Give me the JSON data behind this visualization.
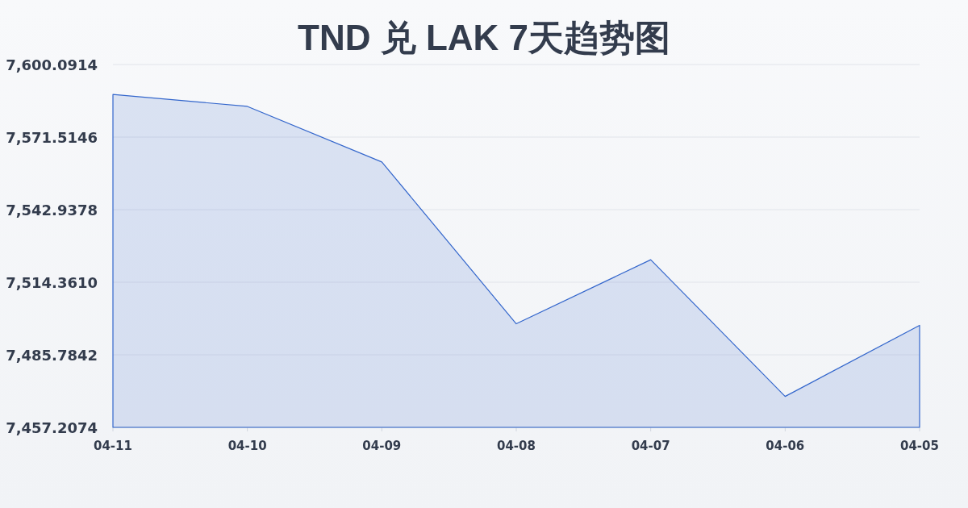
{
  "chart_data": {
    "type": "area",
    "title": "TND 兑 LAK 7天趋势图",
    "categories": [
      "04-11",
      "04-10",
      "04-09",
      "04-08",
      "04-07",
      "04-06",
      "04-05"
    ],
    "values": [
      7588.3,
      7583.6,
      7561.7,
      7498.0,
      7523.2,
      7469.4,
      7497.4
    ],
    "color": "#3366cc",
    "ylim": [
      7457.2074,
      7600.0914
    ],
    "yticks": [
      {
        "value": 7457.2074,
        "label": "7,457.2074"
      },
      {
        "value": 7485.7842,
        "label": "7,485.7842"
      },
      {
        "value": 7514.361,
        "label": "7,514.3610"
      },
      {
        "value": 7542.9378,
        "label": "7,542.9378"
      },
      {
        "value": 7571.5146,
        "label": "7,571.5146"
      },
      {
        "value": 7600.0914,
        "label": "7,600.0914"
      }
    ],
    "grid": "y"
  }
}
